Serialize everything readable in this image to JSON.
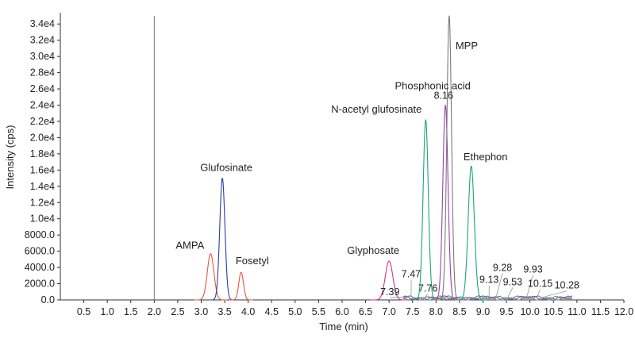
{
  "chart_data": {
    "type": "line",
    "title": "",
    "xlabel": "Time (min)",
    "ylabel": "Intensity (cps)",
    "xlim": [
      0,
      12.0
    ],
    "ylim": [
      0,
      35000
    ],
    "grid": false,
    "legend": "none",
    "x_ticks": [
      "0.5",
      "1.0",
      "1.5",
      "2.0",
      "2.5",
      "3.0",
      "3.5",
      "4.0",
      "4.5",
      "5.0",
      "5.5",
      "6.0",
      "6.5",
      "7.0",
      "7.5",
      "8.0",
      "8.5",
      "9.0",
      "9.5",
      "10.0",
      "10.5",
      "11.0",
      "11.5",
      "12.0"
    ],
    "y_ticks": [
      {
        "value": 0,
        "label": "0.0"
      },
      {
        "value": 2000,
        "label": "2000.0"
      },
      {
        "value": 4000,
        "label": "4000.0"
      },
      {
        "value": 6000,
        "label": "6000.0"
      },
      {
        "value": 8000,
        "label": "8000.0"
      },
      {
        "value": 10000,
        "label": "1.0e4"
      },
      {
        "value": 12000,
        "label": "1.2e4"
      },
      {
        "value": 14000,
        "label": "1.4e4"
      },
      {
        "value": 16000,
        "label": "1.6e4"
      },
      {
        "value": 18000,
        "label": "1.8e4"
      },
      {
        "value": 20000,
        "label": "2.0e4"
      },
      {
        "value": 22000,
        "label": "2.2e4"
      },
      {
        "value": 24000,
        "label": "2.4e4"
      },
      {
        "value": 26000,
        "label": "2.6e4"
      },
      {
        "value": 28000,
        "label": "2.8e4"
      },
      {
        "value": 30000,
        "label": "3.0e4"
      },
      {
        "value": 32000,
        "label": "3.2e4"
      },
      {
        "value": 34000,
        "label": "3.4e4"
      }
    ],
    "vertical_marker_x": 2.0,
    "series": [
      {
        "key": "ampa",
        "color": "#e8553a",
        "peak_rt": 3.2,
        "peak_height": 5700,
        "width": 0.07
      },
      {
        "key": "glufosinate",
        "color": "#2b3c9b",
        "peak_rt": 3.45,
        "peak_height": 15000,
        "width": 0.055
      },
      {
        "key": "fosetyl",
        "color": "#e8553a",
        "peak_rt": 3.85,
        "peak_height": 3400,
        "width": 0.05
      },
      {
        "key": "glyphosate",
        "color": "#d63384",
        "peak_rt": 7.0,
        "peak_height": 4800,
        "width": 0.08
      },
      {
        "key": "n_acetyl_glufosinate",
        "color": "#1aa57a",
        "peak_rt": 7.78,
        "peak_height": 22200,
        "width": 0.055
      },
      {
        "key": "phosphonic_acid",
        "color": "#9b3fae",
        "peak_rt": 8.2,
        "peak_height": 24000,
        "width": 0.055
      },
      {
        "key": "mpp",
        "color": "#7a7a7a",
        "peak_rt": 8.28,
        "peak_height": 35000,
        "width": 0.05
      },
      {
        "key": "ethephon",
        "color": "#1aa57a",
        "peak_rt": 8.75,
        "peak_height": 16500,
        "width": 0.065
      }
    ],
    "peak_labels": [
      {
        "text": "AMPA",
        "x": 3.2,
        "y": 5700
      },
      {
        "text": "Glufosinate",
        "x": 3.45,
        "y": 15000
      },
      {
        "text": "Fosetyl",
        "x": 3.85,
        "y": 3400
      },
      {
        "text": "Glyphosate",
        "x": 7.0,
        "y": 4800
      },
      {
        "text": "N-acetyl glufosinate",
        "x": 7.78,
        "y": 22200
      },
      {
        "text": "Phosphonic acid",
        "x": 8.2,
        "y": 24000
      },
      {
        "text": "MPP",
        "x": 8.28,
        "y": 35000
      },
      {
        "text": "Ethephon",
        "x": 8.75,
        "y": 16500
      }
    ],
    "retention_time_annotations": [
      {
        "text": "7.39",
        "x": 7.39,
        "y": 600
      },
      {
        "text": "7.47",
        "x": 7.47,
        "y": 1800
      },
      {
        "text": "7.76",
        "x": 7.76,
        "y": 1200
      },
      {
        "text": "8.16",
        "x": 8.16,
        "y": 24000
      },
      {
        "text": "9.13",
        "x": 9.13,
        "y": 1500
      },
      {
        "text": "9.28",
        "x": 9.28,
        "y": 3200
      },
      {
        "text": "9.53",
        "x": 9.53,
        "y": 1800
      },
      {
        "text": "9.93",
        "x": 9.93,
        "y": 3000
      },
      {
        "text": "10.15",
        "x": 10.15,
        "y": 1600
      },
      {
        "text": "10.28",
        "x": 10.28,
        "y": 1400
      }
    ]
  }
}
